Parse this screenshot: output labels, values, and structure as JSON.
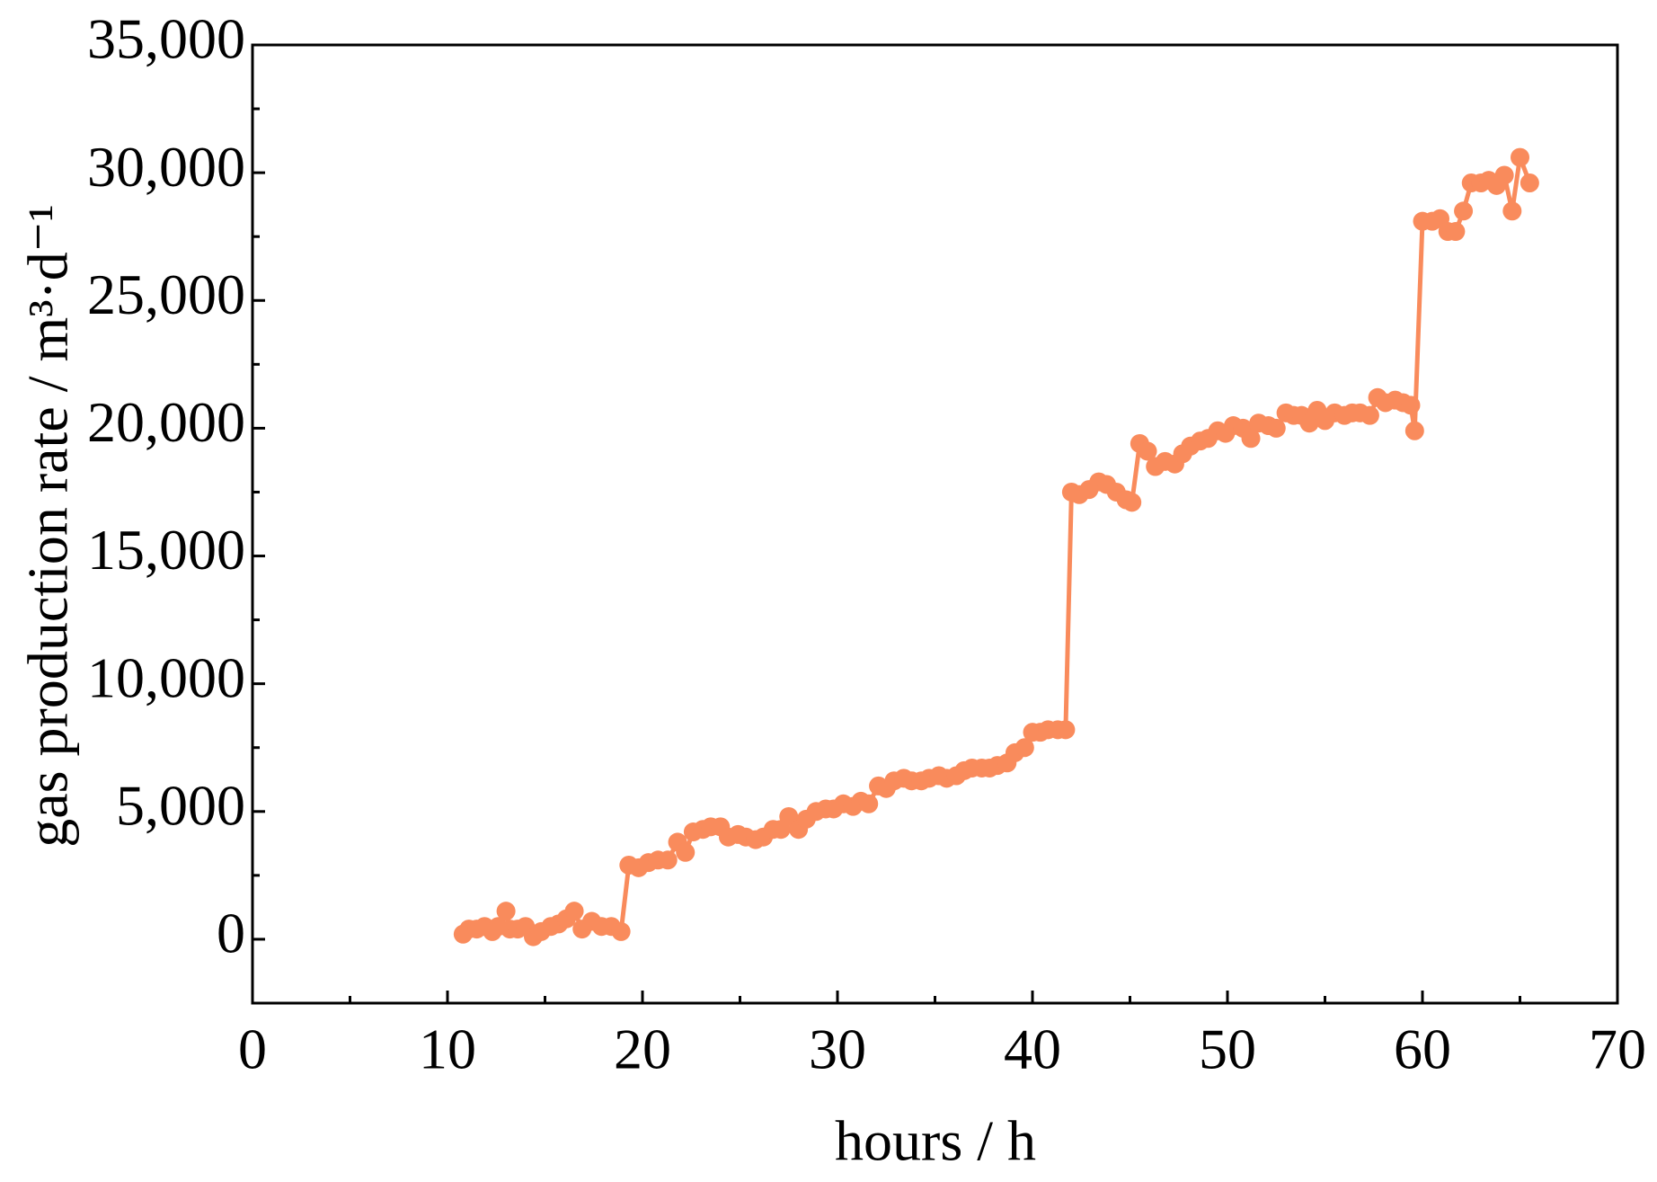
{
  "chart_data": {
    "type": "line",
    "x_label": "hours / h",
    "y_label": "gas production rate / m³·d⁻¹",
    "x": [
      10.8,
      11.1,
      11.5,
      11.9,
      12.3,
      12.6,
      13.0,
      13.2,
      13.6,
      14.0,
      14.4,
      14.8,
      15.3,
      15.7,
      16.1,
      16.5,
      16.9,
      17.4,
      17.9,
      18.4,
      18.9,
      19.3,
      19.8,
      20.3,
      20.8,
      21.3,
      21.8,
      22.2,
      22.6,
      23.1,
      23.5,
      24.0,
      24.4,
      24.9,
      25.3,
      25.8,
      26.2,
      26.7,
      27.1,
      27.5,
      28.0,
      28.4,
      28.9,
      29.4,
      29.8,
      30.3,
      30.8,
      31.2,
      31.6,
      32.1,
      32.5,
      32.9,
      33.4,
      33.8,
      34.3,
      34.7,
      35.2,
      35.6,
      36.1,
      36.5,
      36.9,
      37.4,
      37.8,
      38.2,
      38.7,
      39.1,
      39.6,
      40.0,
      40.4,
      40.8,
      41.3,
      41.7,
      42.0,
      42.4,
      42.9,
      43.4,
      43.8,
      44.3,
      44.8,
      45.1,
      45.5,
      45.9,
      46.3,
      46.8,
      47.3,
      47.7,
      48.1,
      48.6,
      49.0,
      49.5,
      49.9,
      50.3,
      50.8,
      51.2,
      51.6,
      52.1,
      52.5,
      53.0,
      53.4,
      53.8,
      54.2,
      54.6,
      55.0,
      55.5,
      56.0,
      56.4,
      56.8,
      57.3,
      57.7,
      58.1,
      58.6,
      59.0,
      59.4,
      59.6,
      60.0,
      60.5,
      60.9,
      61.3,
      61.7,
      62.1,
      62.5,
      63.0,
      63.4,
      63.8,
      64.2,
      64.6,
      65.0,
      65.5
    ],
    "series": [
      {
        "color": "#f98b5c",
        "values": [
          200,
          400,
          400,
          500,
          300,
          500,
          1100,
          400,
          400,
          500,
          100,
          300,
          500,
          600,
          800,
          1100,
          400,
          700,
          500,
          500,
          300,
          2900,
          2800,
          3000,
          3100,
          3100,
          3800,
          3400,
          4200,
          4300,
          4400,
          4400,
          4000,
          4100,
          4000,
          3900,
          4000,
          4300,
          4300,
          4800,
          4300,
          4700,
          5000,
          5100,
          5100,
          5300,
          5200,
          5400,
          5300,
          6000,
          5900,
          6200,
          6300,
          6200,
          6200,
          6300,
          6400,
          6300,
          6400,
          6600,
          6700,
          6700,
          6700,
          6800,
          6900,
          7300,
          7500,
          8100,
          8100,
          8200,
          8200,
          8200,
          17500,
          17400,
          17600,
          17900,
          17800,
          17500,
          17200,
          17100,
          19400,
          19100,
          18500,
          18700,
          18600,
          19000,
          19300,
          19500,
          19600,
          19900,
          19800,
          20100,
          20000,
          19600,
          20200,
          20100,
          20000,
          20600,
          20500,
          20500,
          20200,
          20700,
          20300,
          20600,
          20500,
          20600,
          20600,
          20500,
          21200,
          21000,
          21100,
          21000,
          20900,
          19900,
          28100,
          28100,
          28200,
          27700,
          27700,
          28500,
          29600,
          29600,
          29700,
          29500,
          29900,
          28500,
          30600,
          29600
        ]
      }
    ],
    "xlim": [
      0,
      70
    ],
    "xticks": [
      0,
      10,
      20,
      30,
      40,
      50,
      60,
      70
    ],
    "xticks_minor": [
      5,
      15,
      25,
      35,
      45,
      55,
      65
    ],
    "ylim": [
      -2500,
      35000
    ],
    "yticks": [
      0,
      {
        "value": 5000,
        "label": "5,000"
      },
      {
        "value": 10000,
        "label": "10,000"
      },
      {
        "value": 15000,
        "label": "15,000"
      },
      {
        "value": 20000,
        "label": "20,000"
      },
      {
        "value": 25000,
        "label": "25,000"
      },
      {
        "value": 30000,
        "label": "30,000"
      },
      {
        "value": 35000,
        "label": "35,000"
      }
    ],
    "yticks_minor": [
      2500,
      7500,
      12500,
      17500,
      22500,
      27500,
      32500
    ]
  }
}
